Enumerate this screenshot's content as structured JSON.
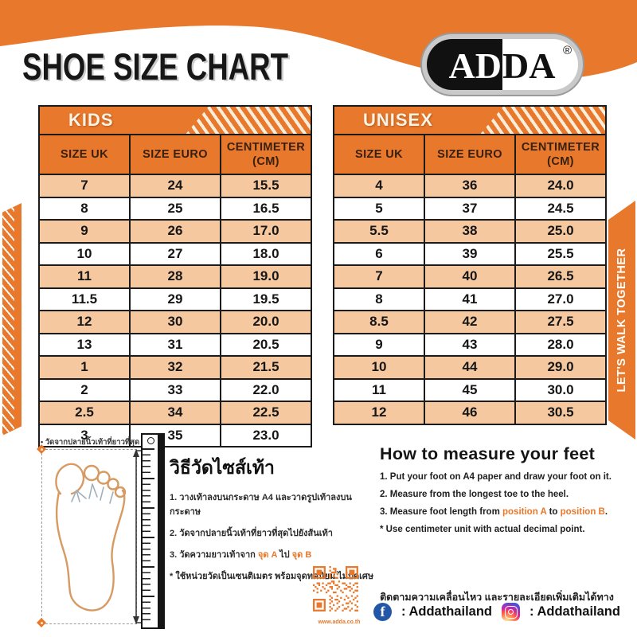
{
  "header": {
    "title": "SHOE SIZE CHART"
  },
  "brand": {
    "logo_left": "AD",
    "logo_right": "DA",
    "logo_reg": "®"
  },
  "kids_table": {
    "label": "KIDS",
    "columns": [
      "SIZE UK",
      "SIZE EURO",
      "CENTIMETER\n(CM)"
    ],
    "rows": [
      [
        "7",
        "24",
        "15.5"
      ],
      [
        "8",
        "25",
        "16.5"
      ],
      [
        "9",
        "26",
        "17.0"
      ],
      [
        "10",
        "27",
        "18.0"
      ],
      [
        "11",
        "28",
        "19.0"
      ],
      [
        "11.5",
        "29",
        "19.5"
      ],
      [
        "12",
        "30",
        "20.0"
      ],
      [
        "13",
        "31",
        "20.5"
      ],
      [
        "1",
        "32",
        "21.5"
      ],
      [
        "2",
        "33",
        "22.0"
      ],
      [
        "2.5",
        "34",
        "22.5"
      ],
      [
        "3",
        "35",
        "23.0"
      ]
    ]
  },
  "unisex_table": {
    "label": "UNISEX",
    "columns": [
      "SIZE UK",
      "SIZE EURO",
      "CENTIMETER\n(CM)"
    ],
    "rows": [
      [
        "4",
        "36",
        "24.0"
      ],
      [
        "5",
        "37",
        "24.5"
      ],
      [
        "5.5",
        "38",
        "25.0"
      ],
      [
        "6",
        "39",
        "25.5"
      ],
      [
        "7",
        "40",
        "26.5"
      ],
      [
        "8",
        "41",
        "27.0"
      ],
      [
        "8.5",
        "42",
        "27.5"
      ],
      [
        "9",
        "43",
        "28.0"
      ],
      [
        "10",
        "44",
        "29.0"
      ],
      [
        "11",
        "45",
        "30.0"
      ],
      [
        "12",
        "46",
        "30.5"
      ]
    ]
  },
  "right_banner": {
    "text": "LET'S WALK TOGETHER"
  },
  "measure_diagram": {
    "top_label": "• วัดจากปลายนิ้วเท้าที่ยาวที่สุด •"
  },
  "thai_guide": {
    "title": "วิธีวัดไซส์เท้า",
    "step1": "1. วางเท้าลงบนกระดาษ A4 และวาดรูปเท้าลงบนกระดาษ",
    "step2": "2. วัดจากปลายนิ้วเท้าที่ยาวที่สุดไปยังส้นเท้า",
    "step3_prefix": "3. วัดความยาวเท้าจาก ",
    "step3_a": "จุด A",
    "step3_mid": " ไป ",
    "step3_b": "จุด B",
    "note": "* ใช้หน่วยวัดเป็นเซนติเมตร พร้อมจุดทศนิยม ไม่ปัดเศษ"
  },
  "english_guide": {
    "title": "How to measure your feet",
    "step1": "1. Put your foot on A4 paper and draw your foot on it.",
    "step2": "2. Measure from the longest toe to the heel.",
    "step3_prefix": "3. Measure foot length from ",
    "step3_a": "position A",
    "step3_mid": " to ",
    "step3_b": "position B",
    "step3_suffix": ".",
    "note": "* Use centimeter unit with actual decimal point."
  },
  "footer": {
    "qr_caption": "www.adda.co.th",
    "follow_text": "ติดตามความเคลื่อนไหว และรายละเอียดเพิ่มเติมได้ทาง",
    "facebook_handle": ": Addathailand",
    "instagram_handle": ": Addathailand"
  },
  "colors": {
    "orange": "#E8782B",
    "peach": "#F5C8A0",
    "facebook_blue": "#2456A8"
  }
}
